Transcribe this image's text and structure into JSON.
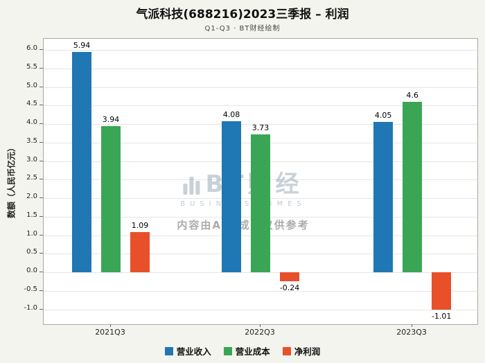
{
  "header": {
    "title": "气派科技(688216)2023三季报 – 利润",
    "subtitle": "Q1-Q3 · BT财经绘制"
  },
  "watermark": {
    "brand": "BT财经",
    "brand_sub": "BUSINESS TIMES",
    "disclaimer": "内容由AI生成，仅供参考"
  },
  "chart_data": {
    "type": "bar",
    "categories": [
      "2021Q3",
      "2022Q3",
      "2023Q3"
    ],
    "series": [
      {
        "name": "营业收入",
        "color": "#1f77b4",
        "values": [
          5.94,
          4.08,
          4.05
        ]
      },
      {
        "name": "营业成本",
        "color": "#3aa655",
        "values": [
          3.94,
          3.73,
          4.6
        ]
      },
      {
        "name": "净利润",
        "color": "#e8502a",
        "values": [
          1.09,
          -0.24,
          -1.01
        ]
      }
    ],
    "ylabel": "数额（人民币亿元）",
    "ylim": [
      -1.4,
      6.3
    ],
    "yticks": [
      -1.0,
      -0.5,
      0.0,
      0.5,
      1.0,
      1.5,
      2.0,
      2.5,
      3.0,
      3.5,
      4.0,
      4.5,
      5.0,
      5.5,
      6.0
    ],
    "grid": true,
    "legend_position": "bottom"
  }
}
